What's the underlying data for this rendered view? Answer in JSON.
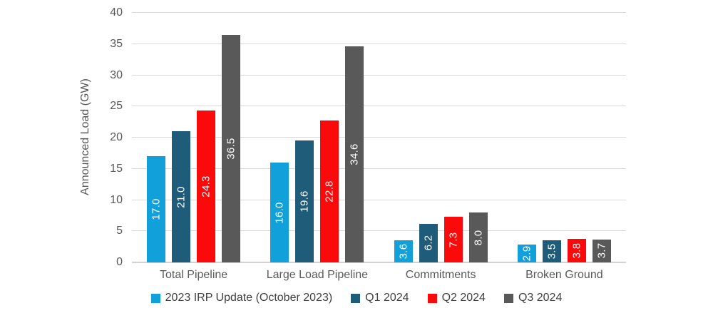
{
  "chart_data": {
    "type": "bar",
    "title": "",
    "xlabel": "",
    "ylabel": "Announced Load (GW)",
    "ylim": [
      0,
      40
    ],
    "yticks": [
      0,
      5,
      10,
      15,
      20,
      25,
      30,
      35,
      40
    ],
    "grid": true,
    "legend_position": "bottom",
    "value_labels": "inside-center, rotated 90deg, white, one decimal",
    "categories": [
      "Total Pipeline",
      "Large Load Pipeline",
      "Commitments",
      "Broken Ground"
    ],
    "series": [
      {
        "name": "2023 IRP Update (October 2023)",
        "color": "#11A0D9",
        "values": [
          17.0,
          16.0,
          3.6,
          2.9
        ]
      },
      {
        "name": "Q1 2024",
        "color": "#1F5C7A",
        "values": [
          21.0,
          19.6,
          6.2,
          3.5
        ]
      },
      {
        "name": "Q2 2024",
        "color": "#FA0A0A",
        "values": [
          24.3,
          22.8,
          7.3,
          3.8
        ]
      },
      {
        "name": "Q3 2024",
        "color": "#595959",
        "values": [
          36.5,
          34.6,
          8.0,
          3.7
        ]
      }
    ]
  },
  "colors": {
    "background": "#FFFFFF",
    "gridline": "#D9D9D9",
    "axis_text": "#595959",
    "legend_text": "#404040",
    "value_label_text": "#FFFFFF"
  }
}
